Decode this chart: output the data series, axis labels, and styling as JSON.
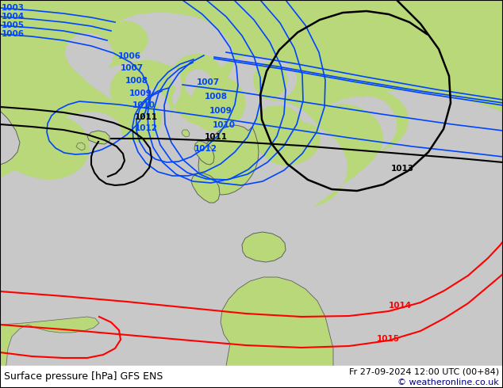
{
  "title_left": "Surface pressure [hPa] GFS ENS",
  "title_right": "Fr 27-09-2024 12:00 UTC (00+84)",
  "copyright": "© weatheronline.co.uk",
  "land_color": "#b8d87a",
  "sea_color": "#c8c8c8",
  "border_color": "#606060",
  "blue_line_color": "#0044ff",
  "black_line_color": "#000000",
  "red_line_color": "#ff0000",
  "label_fontsize": 7.5,
  "footer_fontsize": 9
}
